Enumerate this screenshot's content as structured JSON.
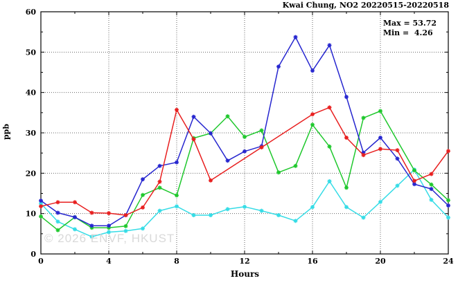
{
  "title": "Kwai Chung, NO2 20220515-20220518",
  "annotation": {
    "max_label": "Max = 53.72",
    "min_label": "Min =  4.26"
  },
  "watermark": "© 2026 ENVF, HKUST",
  "axis": {
    "ylabel": "ppb",
    "xlabel": "Hours"
  },
  "chart_data": {
    "type": "line",
    "title": "Kwai Chung, NO2 20220515-20220518",
    "xlabel": "Hours",
    "ylabel": "ppb",
    "xlim": [
      0,
      24
    ],
    "ylim": [
      0,
      60
    ],
    "xticks": [
      0,
      4,
      8,
      12,
      16,
      20,
      24
    ],
    "xminorticks": [
      2,
      6,
      10,
      14,
      18,
      22
    ],
    "yticks": [
      0,
      10,
      20,
      30,
      40,
      50,
      60
    ],
    "yminorticks": [
      5,
      15,
      25,
      35,
      45,
      55
    ],
    "x_gridlines": [
      4,
      8,
      12,
      16,
      20
    ],
    "y_gridlines": [
      10,
      20,
      30,
      40,
      50
    ],
    "grid": "dotted",
    "legend_position": "none",
    "stat_max": 53.72,
    "stat_min": 4.26,
    "x": [
      0,
      1,
      2,
      3,
      4,
      5,
      6,
      7,
      8,
      9,
      10,
      11,
      12,
      13,
      14,
      15,
      16,
      17,
      18,
      19,
      20,
      21,
      22,
      23,
      24
    ],
    "series": [
      {
        "name": "cyan",
        "color": "#35dce6",
        "values": [
          12.5,
          8.0,
          6.1,
          4.26,
          5.4,
          5.7,
          6.3,
          10.7,
          11.8,
          9.6,
          9.6,
          11.1,
          11.7,
          10.7,
          9.6,
          8.2,
          11.6,
          18.0,
          11.6,
          9.0,
          12.9,
          16.9,
          20.9,
          13.4,
          9.0
        ]
      },
      {
        "name": "green",
        "color": "#1fc82d",
        "values": [
          9.3,
          5.9,
          9.1,
          6.5,
          6.5,
          6.9,
          14.6,
          16.4,
          14.5,
          28.7,
          29.9,
          34.1,
          29.0,
          30.6,
          20.2,
          21.8,
          32.0,
          26.6,
          16.4,
          33.7,
          35.4,
          null,
          20.7,
          17.2,
          13.3
        ]
      },
      {
        "name": "blue",
        "color": "#2626cf",
        "values": [
          13.2,
          10.2,
          9.1,
          7.0,
          7.0,
          9.6,
          18.5,
          21.8,
          22.7,
          34.0,
          29.9,
          23.1,
          25.4,
          26.7,
          46.4,
          53.72,
          45.4,
          51.7,
          38.9,
          25.1,
          28.8,
          23.6,
          17.3,
          16.1,
          12.0
        ]
      },
      {
        "name": "red",
        "color": "#e81f1f",
        "values": [
          11.8,
          12.8,
          12.8,
          10.2,
          10.1,
          9.6,
          11.5,
          17.9,
          35.7,
          28.4,
          18.2,
          null,
          null,
          26.4,
          null,
          null,
          34.6,
          36.3,
          28.8,
          24.5,
          26.0,
          25.7,
          18.1,
          19.8,
          25.5
        ]
      }
    ]
  }
}
